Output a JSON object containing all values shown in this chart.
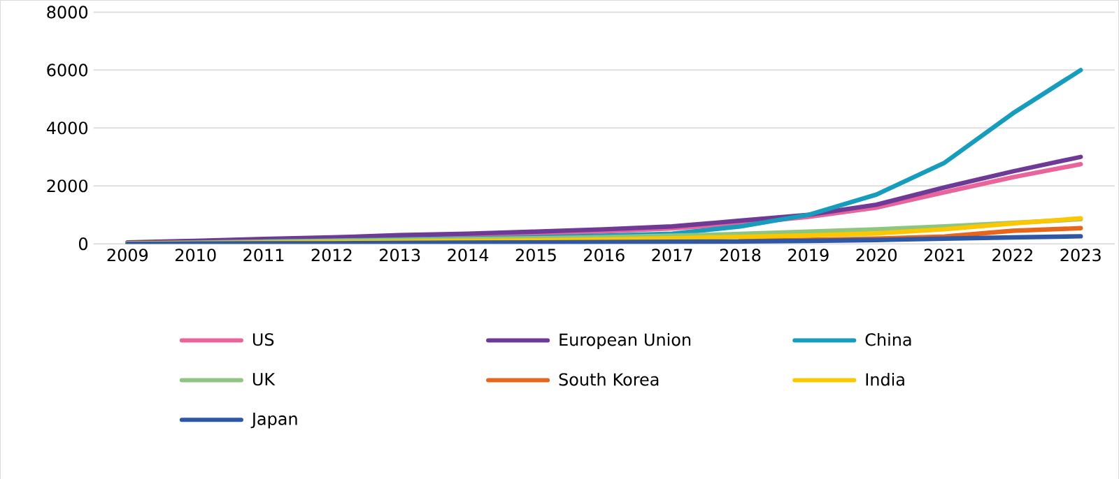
{
  "chart_data": {
    "type": "line",
    "categories": [
      "2009",
      "2010",
      "2011",
      "2012",
      "2013",
      "2014",
      "2015",
      "2016",
      "2017",
      "2018",
      "2019",
      "2020",
      "2021",
      "2022",
      "2023"
    ],
    "ylim": [
      0,
      8000
    ],
    "yticks": [
      0,
      2000,
      4000,
      6000,
      8000
    ],
    "grid": "y",
    "legend": "bottom",
    "series": [
      {
        "name": "US",
        "color": "#e8649a",
        "values": [
          null,
          null,
          null,
          null,
          250,
          300,
          360,
          430,
          530,
          700,
          930,
          1250,
          1780,
          2300,
          2750
        ]
      },
      {
        "name": "European Union",
        "color": "#6f3a96",
        "values": [
          50,
          100,
          170,
          220,
          300,
          350,
          420,
          500,
          600,
          800,
          1000,
          1350,
          1950,
          2500,
          3000
        ]
      },
      {
        "name": "China",
        "color": "#169cbd",
        "values": [
          null,
          null,
          80,
          110,
          150,
          180,
          230,
          280,
          350,
          600,
          1000,
          1700,
          2800,
          4500,
          6000
        ]
      },
      {
        "name": "UK",
        "color": "#8fc67f",
        "values": [
          20,
          40,
          70,
          100,
          130,
          160,
          190,
          230,
          280,
          340,
          420,
          500,
          600,
          720,
          850
        ]
      },
      {
        "name": "South Korea",
        "color": "#e8651c",
        "values": [
          null,
          null,
          null,
          null,
          null,
          null,
          null,
          null,
          null,
          110,
          140,
          180,
          250,
          450,
          540
        ]
      },
      {
        "name": "India",
        "color": "#fdc700",
        "values": [
          10,
          20,
          40,
          60,
          80,
          100,
          120,
          150,
          190,
          240,
          290,
          360,
          500,
          700,
          880
        ]
      },
      {
        "name": "Japan",
        "color": "#2e58a6",
        "values": [
          0,
          10,
          20,
          20,
          30,
          40,
          50,
          60,
          70,
          80,
          100,
          130,
          180,
          220,
          260
        ]
      }
    ]
  }
}
